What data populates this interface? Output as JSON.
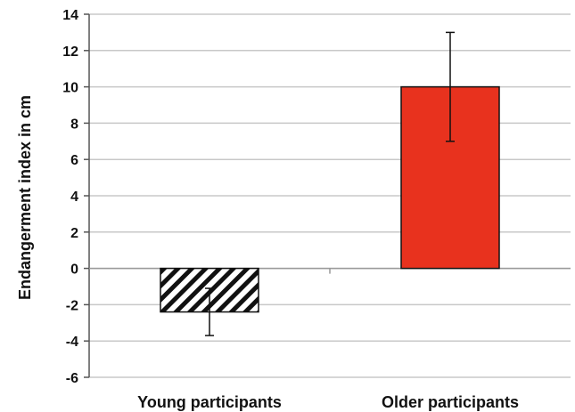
{
  "chart_data": {
    "type": "bar",
    "title": "",
    "xlabel": "",
    "ylabel": "Endangerment index in cm",
    "ylim": [
      -6,
      14
    ],
    "yticks": [
      -6,
      -4,
      -2,
      0,
      2,
      4,
      6,
      8,
      10,
      12,
      14
    ],
    "grid": true,
    "categories": [
      "Young participants",
      "Older participants"
    ],
    "values": [
      -2.4,
      10
    ],
    "error_bars": [
      {
        "low": -3.7,
        "high": -1.1
      },
      {
        "low": 7,
        "high": 13
      }
    ],
    "bar_styles": [
      "hatched",
      "solid"
    ],
    "colors": {
      "older_bar": "#e8321e",
      "hatch": "#111111",
      "grid": "#c8c8c8",
      "plot_background": "#ffffff"
    }
  }
}
